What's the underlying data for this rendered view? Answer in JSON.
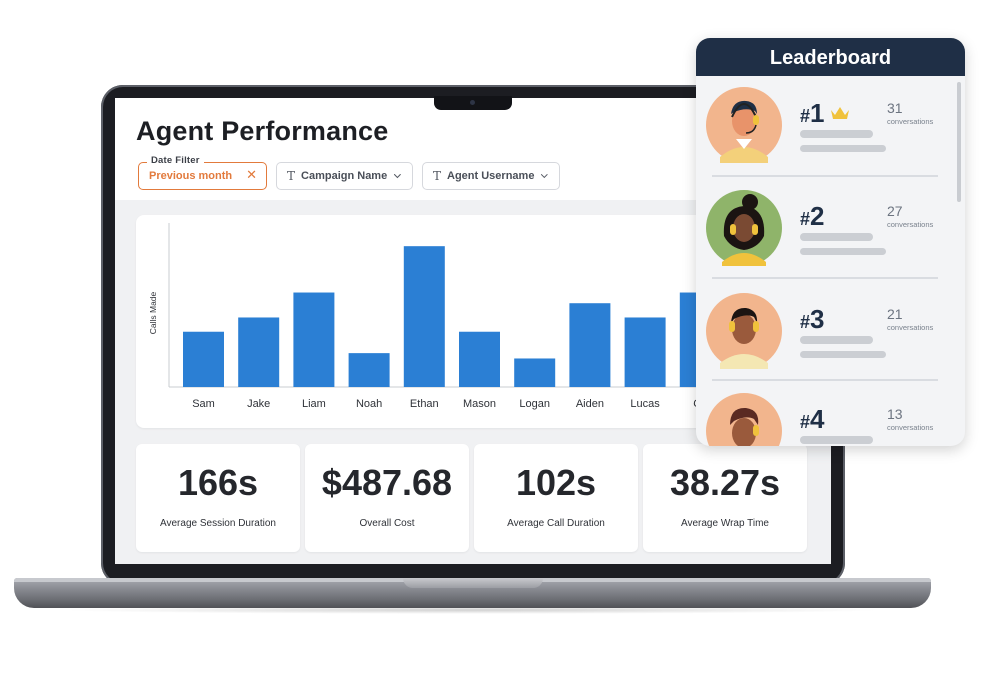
{
  "page": {
    "title": "Agent Performance"
  },
  "filters": {
    "date": {
      "legend": "Date Filter",
      "value": "Previous month"
    },
    "campaign": {
      "label": "Campaign Name"
    },
    "agent": {
      "label": "Agent Username"
    }
  },
  "chart_data": {
    "type": "bar",
    "ylabel": "Calls Made",
    "xlabel": "",
    "categories": [
      "Sam",
      "Jake",
      "Liam",
      "Noah",
      "Ethan",
      "Mason",
      "Logan",
      "Aiden",
      "Lucas",
      "Ca"
    ],
    "values": [
      31,
      39,
      53,
      19,
      79,
      31,
      16,
      47,
      39,
      53
    ],
    "ylim": [
      0,
      92
    ],
    "color": "#2b7fd4",
    "grid": false
  },
  "stats": [
    {
      "value": "166s",
      "label": "Average Session Duration"
    },
    {
      "value": "$487.68",
      "label": "Overall Cost"
    },
    {
      "value": "102s",
      "label": "Average Call Duration"
    },
    {
      "value": "38.27s",
      "label": "Average Wrap Time"
    }
  ],
  "leaderboard": {
    "title": "Leaderboard",
    "count_label": "conversations",
    "entries": [
      {
        "rank": "1",
        "count": "31",
        "crown": true
      },
      {
        "rank": "2",
        "count": "27",
        "crown": false
      },
      {
        "rank": "3",
        "count": "21",
        "crown": false
      },
      {
        "rank": "4",
        "count": "13",
        "crown": false
      }
    ]
  },
  "colors": {
    "accent_orange": "#e27a3c",
    "bar_blue": "#2b7fd4",
    "leaderboard_header": "#1f2f46"
  }
}
